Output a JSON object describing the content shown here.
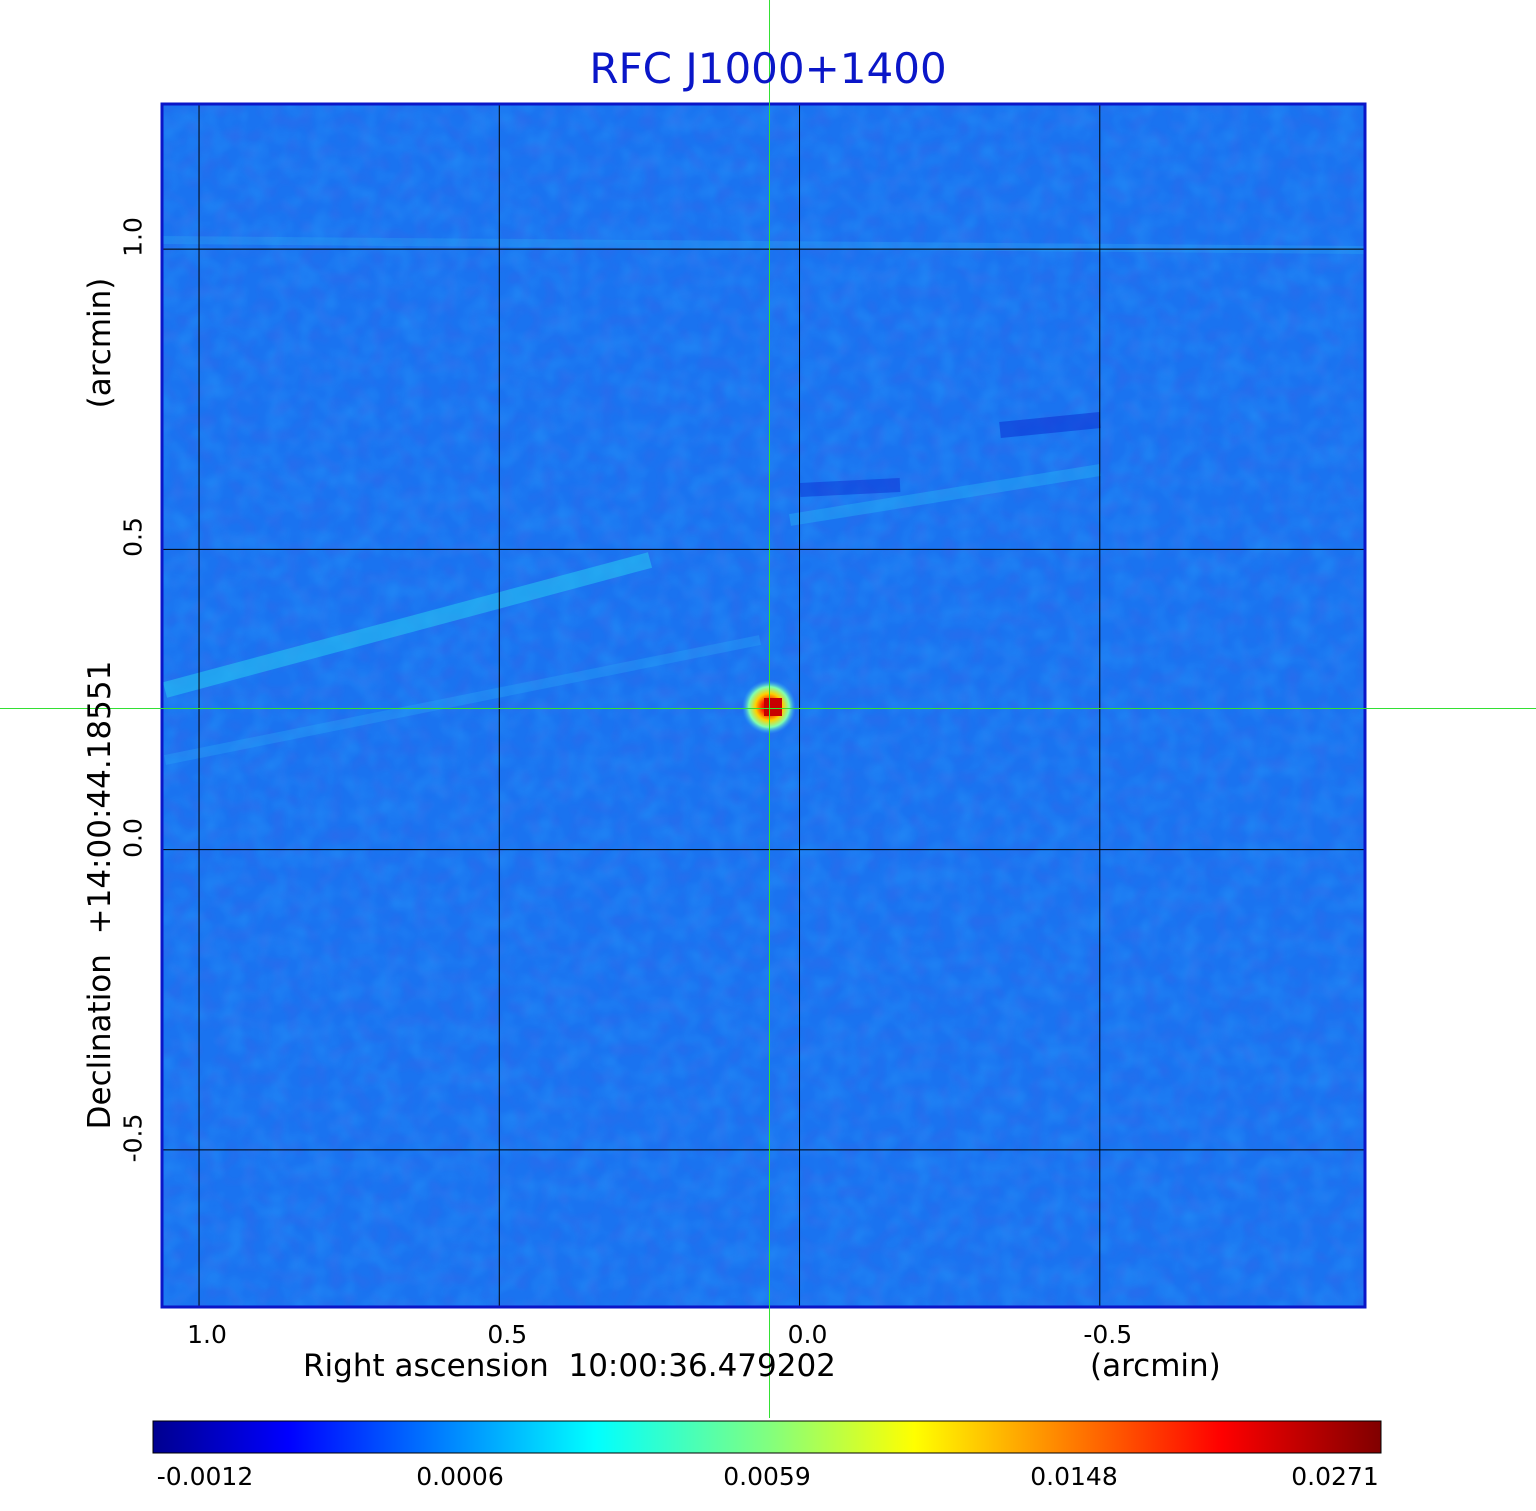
{
  "chart_data": {
    "type": "heatmap",
    "title": "RFC J1000+1400",
    "xlabel": "Right ascension  10:00:36.479202",
    "x_unit": "(arcmin)",
    "ylabel": "Declination  +14:00:44.18551",
    "y_unit": "(arcmin)",
    "x_ticks": [
      "1.0",
      "0.5",
      "0.0",
      "-0.5"
    ],
    "y_ticks": [
      "1.0",
      "0.5",
      "0.0",
      "-0.5"
    ],
    "x_tick_values": [
      1.0,
      0.5,
      0.0,
      -0.5
    ],
    "y_tick_values": [
      1.0,
      0.5,
      0.0,
      -0.5
    ],
    "xlim": [
      1.06,
      -0.94
    ],
    "ylim": [
      -0.76,
      1.24
    ],
    "grid": true,
    "crosshair": {
      "x": 0.05,
      "y": 0.235,
      "color": "#33e033"
    },
    "source": {
      "x": 0.03,
      "y": 0.238,
      "peak": 0.0271
    },
    "colormap": "jet",
    "colorbar": {
      "ticks": [
        "-0.0012",
        "0.0006",
        "0.0059",
        "0.0148",
        "0.0271"
      ],
      "min": -0.0012,
      "max": 0.0271
    }
  }
}
